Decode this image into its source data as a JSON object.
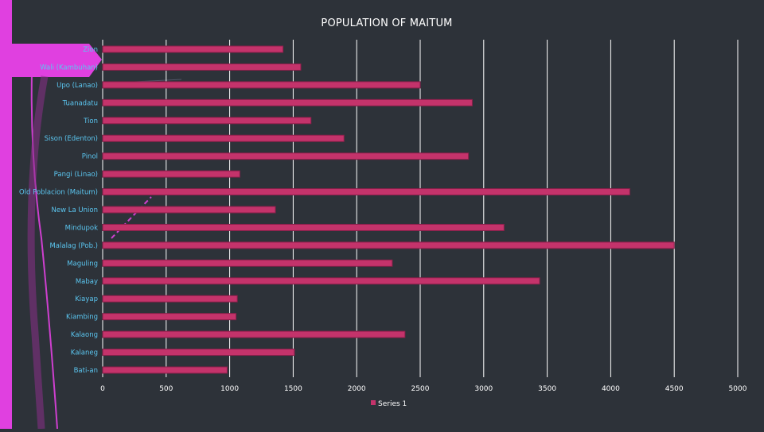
{
  "colors": {
    "background": "#2d3239",
    "accent": "#e040e0",
    "bar_fill": "#c4336b",
    "bar_edge": "#8a1f4a",
    "grid": "#ffffff",
    "category_label": "#5bc6f0",
    "tick_label": "#ffffff"
  },
  "chart_data": {
    "type": "bar",
    "orientation": "horizontal",
    "title": "POPULATION OF MAITUM",
    "xlabel": "",
    "ylabel": "",
    "xlim": [
      0,
      5000
    ],
    "xticks": [
      0,
      500,
      1000,
      1500,
      2000,
      2500,
      3000,
      3500,
      4000,
      4500,
      5000
    ],
    "grid": true,
    "legend_position": "bottom",
    "categories": [
      "Bati-an",
      "Kalaneg",
      "Kalaong",
      "Kiambing",
      "Kiayap",
      "Mabay",
      "Maguling",
      "Malalag (Pob.)",
      "Mindupok",
      "New La Union",
      "Old Poblacion (Maitum)",
      "Pangi (Linao)",
      "Pinol",
      "Sison (Edenton)",
      "Tion",
      "Tuanadatu",
      "Upo (Lanao)",
      "Wali (Kambuhan)",
      "Zion"
    ],
    "series": [
      {
        "name": "Series 1",
        "values": [
          980,
          1510,
          2380,
          1050,
          1060,
          3440,
          2280,
          4500,
          3160,
          1360,
          4150,
          1080,
          2880,
          1900,
          1640,
          2910,
          2500,
          1560,
          1420
        ]
      }
    ]
  }
}
